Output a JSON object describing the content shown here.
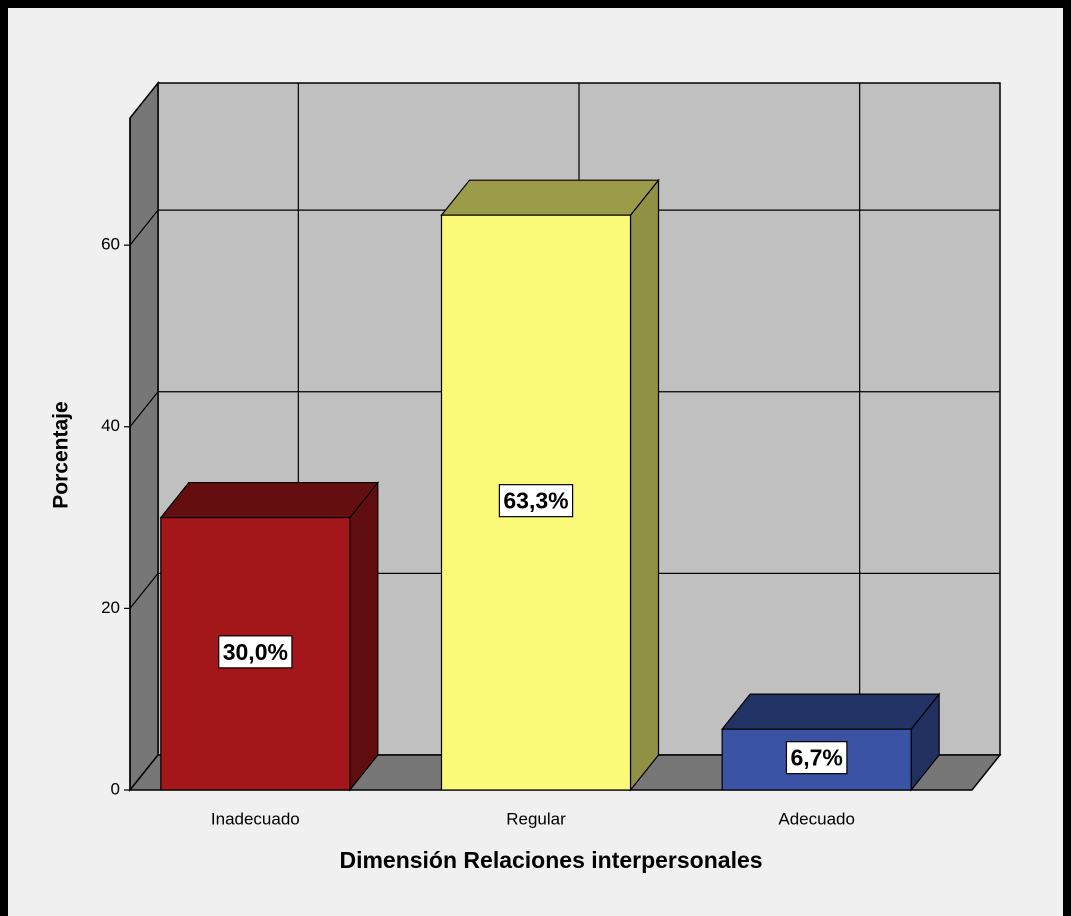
{
  "chart_data": {
    "type": "bar3d",
    "x_label": "Dimensión Relaciones interpersonales",
    "y_label": "Porcentaje",
    "categories": [
      "Inadecuado",
      "Regular",
      "Adecuado"
    ],
    "values": [
      30.0,
      63.3,
      6.7
    ],
    "value_labels": [
      "30,0%",
      "63,3%",
      "6,7%"
    ],
    "colors": [
      "#a3161a",
      "#fafa78",
      "#3a53a4"
    ],
    "ylim": [
      0,
      74
    ],
    "yticks": [
      0,
      20,
      40,
      60
    ],
    "grid": true
  }
}
